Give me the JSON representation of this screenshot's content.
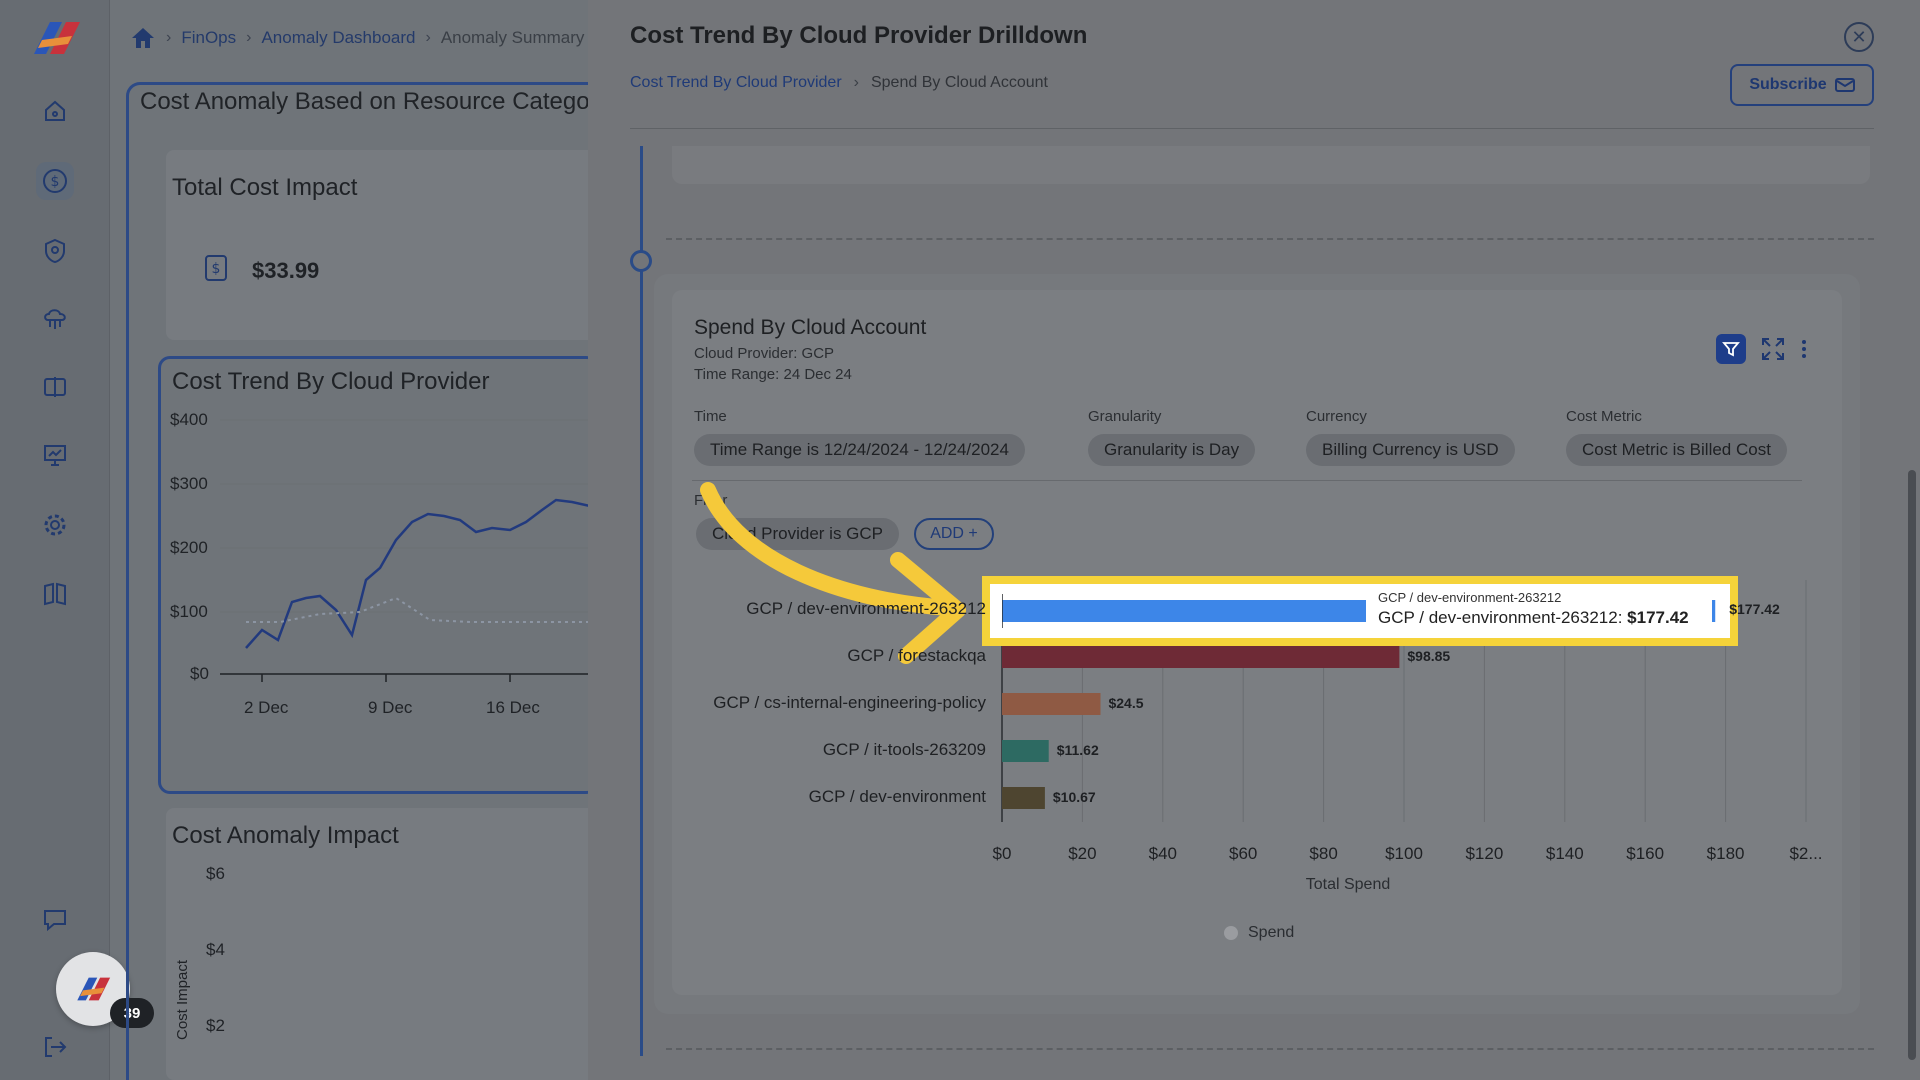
{
  "breadcrumb": {
    "home": "home",
    "items": [
      "FinOps",
      "Anomaly Dashboard",
      "Anomaly Summary"
    ]
  },
  "background": {
    "panel_title": "Cost Anomaly Based on Resource Category",
    "total_cost": {
      "title": "Total Cost Impact",
      "value": "$33.99"
    },
    "trend": {
      "title": "Cost Trend By Cloud Provider",
      "y_ticks": [
        "$400",
        "$300",
        "$200",
        "$100",
        "$0"
      ],
      "x_ticks": [
        "2 Dec",
        "9 Dec",
        "16 Dec"
      ]
    },
    "anomaly": {
      "title": "Cost Anomaly Impact",
      "y_ticks": [
        "$6",
        "$4",
        "$2"
      ],
      "y_label": "Cost Impact"
    }
  },
  "sidebar": {
    "items": [
      "home-icon",
      "dollar-icon",
      "shield-icon",
      "cloud-network-icon",
      "split-view-icon",
      "presentation-icon",
      "gear-icon",
      "book-icon",
      "chat-icon",
      "logout-icon"
    ],
    "badge": "39"
  },
  "drawer": {
    "title": "Cost Trend By Cloud Provider Drilldown",
    "crumbs": [
      "Cost Trend By Cloud Provider",
      "Spend By Cloud Account"
    ],
    "subscribe": "Subscribe",
    "card": {
      "title": "Spend By Cloud Account",
      "cloud_provider": "Cloud Provider: GCP",
      "time_range": "Time Range: 24 Dec 24"
    },
    "filters": {
      "time_label": "Time",
      "time_chip": "Time Range is 12/24/2024 - 12/24/2024",
      "granularity_label": "Granularity",
      "granularity_chip": "Granularity is Day",
      "currency_label": "Currency",
      "currency_chip": "Billing Currency is USD",
      "cost_metric_label": "Cost Metric",
      "cost_metric_chip": "Cost Metric is Billed Cost",
      "filter_label": "Filter",
      "provider_chip": "Cloud Provider is GCP",
      "add": "ADD +"
    },
    "tooltip": {
      "head": "GCP / dev-environment-263212",
      "body_label": "GCP / dev-environment-263212:",
      "body_value": "$177.42"
    }
  },
  "chart_data": {
    "type": "bar",
    "orientation": "horizontal",
    "categories": [
      "GCP / dev-environment-263212",
      "GCP / forestackqa",
      "GCP / cs-internal-engineering-policy",
      "GCP / it-tools-263209",
      "GCP / dev-environment"
    ],
    "values": [
      177.42,
      98.85,
      24.5,
      11.62,
      10.67
    ],
    "value_labels": [
      "$177.42",
      "$98.85",
      "$24.5",
      "$11.62",
      "$10.67"
    ],
    "colors": [
      "#3d86e8",
      "#6e2a36",
      "#8f5a44",
      "#2d6a62",
      "#4e4530"
    ],
    "x_ticks": [
      "$0",
      "$20",
      "$40",
      "$60",
      "$80",
      "$100",
      "$120",
      "$140",
      "$160",
      "$180",
      "$2..."
    ],
    "xlabel": "Total Spend",
    "xlim": [
      0,
      200
    ],
    "legend": [
      "Spend"
    ],
    "grid": true
  }
}
